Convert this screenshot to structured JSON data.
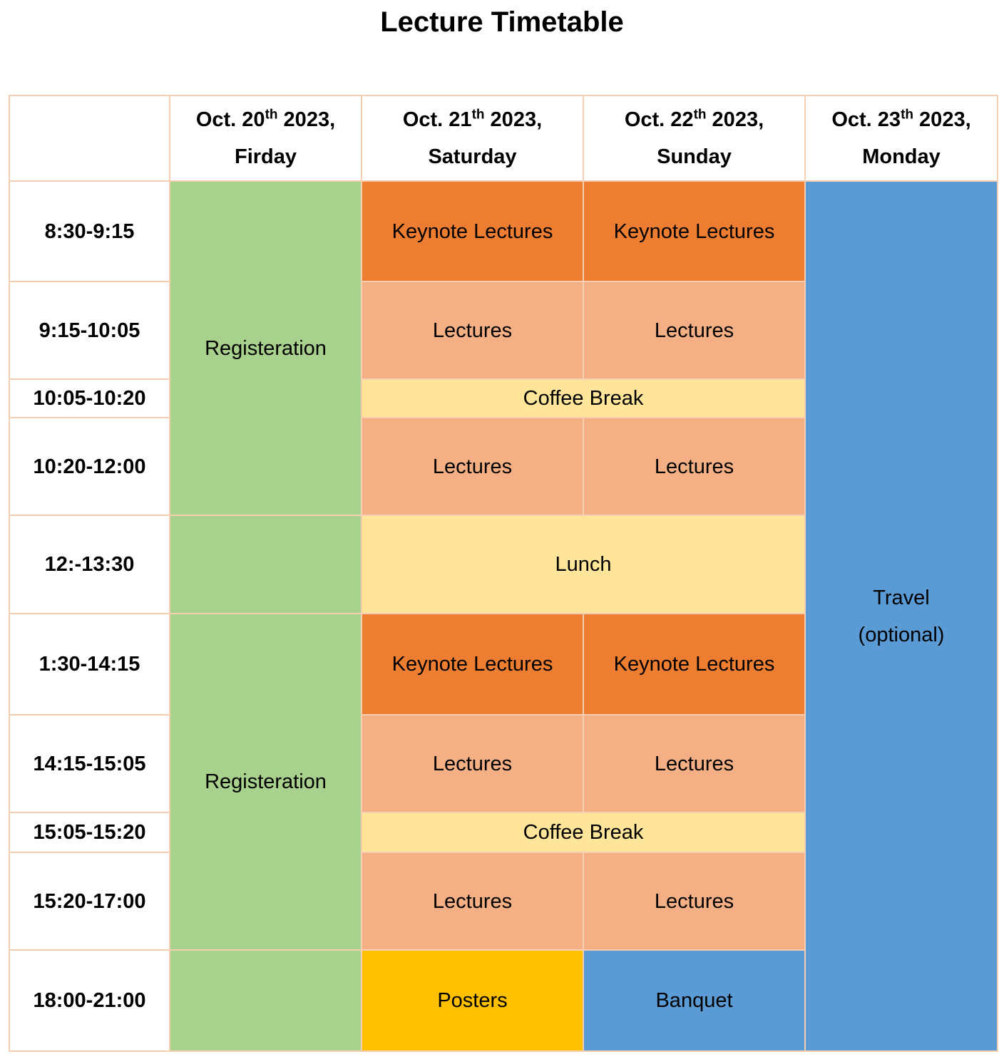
{
  "title": "Lecture Timetable",
  "header": {
    "corner": "",
    "days": [
      {
        "date_prefix": "Oct. 20",
        "suffix": "th",
        "year": " 2023,",
        "weekday": "Firday"
      },
      {
        "date_prefix": "Oct. 21",
        "suffix": "th",
        "year": " 2023,",
        "weekday": "Saturday"
      },
      {
        "date_prefix": "Oct. 22",
        "suffix": "th",
        "year": " 2023,",
        "weekday": "Sunday"
      },
      {
        "date_prefix": "Oct. 23",
        "suffix": "th",
        "year": " 2023,",
        "weekday": "Monday"
      }
    ]
  },
  "times": [
    "8:30-9:15",
    "9:15-10:05",
    "10:05-10:20",
    "10:20-12:00",
    "12:-13:30",
    "1:30-14:15",
    "14:15-15:05",
    "15:05-15:20",
    "15:20-17:00",
    "18:00-21:00"
  ],
  "friday": {
    "morning": "Registeration",
    "noon": "",
    "afternoon": "Registeration",
    "evening": ""
  },
  "saturday": {
    "keynote_am": "Keynote Lectures",
    "lectures_1": "Lectures",
    "lectures_2": "Lectures",
    "keynote_pm": "Keynote Lectures",
    "lectures_3": "Lectures",
    "lectures_4": "Lectures",
    "evening": "Posters"
  },
  "sunday": {
    "keynote_am": "Keynote Lectures",
    "lectures_1": "Lectures",
    "lectures_2": "Lectures",
    "keynote_pm": "Keynote Lectures",
    "lectures_3": "Lectures",
    "lectures_4": "Lectures",
    "evening": "Banquet"
  },
  "shared": {
    "coffee_am": "Coffee Break",
    "lunch": "Lunch",
    "coffee_pm": "Coffee Break"
  },
  "monday": {
    "line1": "Travel",
    "line2": "(optional)"
  },
  "colors": {
    "registration": "#a9d18e",
    "keynote": "#ed7d31",
    "lectures": "#f4b084",
    "break": "#fee599",
    "travel_banquet": "#5b9bd5",
    "posters": "#ffc000",
    "grid": "#f6cfb3"
  }
}
